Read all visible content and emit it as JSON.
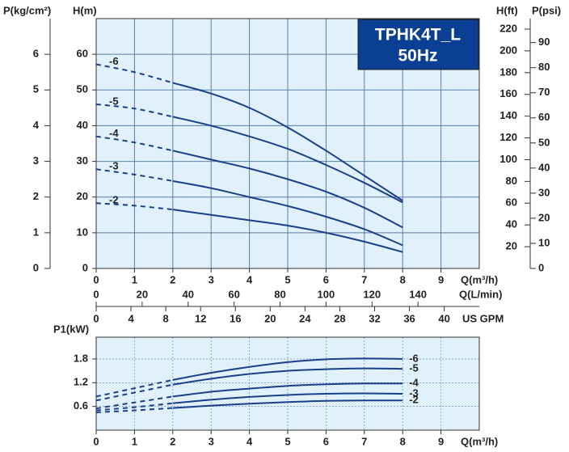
{
  "chart_data": [
    {
      "type": "line",
      "title": "TPHK4T_L",
      "subtitle": "50Hz",
      "xlabel": "Q(m³/h)",
      "ylabel": "H(m)",
      "x": [
        0,
        1,
        2,
        3,
        4,
        5,
        6,
        7,
        8
      ],
      "xlim": [
        0,
        10
      ],
      "xticks": [
        0,
        1,
        2,
        3,
        4,
        5,
        6,
        7,
        8,
        9
      ],
      "ylim": [
        0,
        70
      ],
      "yticks": [
        0,
        10,
        20,
        30,
        40,
        50,
        60
      ],
      "grid": true,
      "dashed_x_max": 2,
      "series_label_position": "start",
      "series": [
        {
          "name": "-6",
          "color": "#1b3f8b",
          "values": [
            57.2,
            55,
            52,
            49,
            45,
            39.5,
            33,
            26,
            19
          ]
        },
        {
          "name": "-5",
          "color": "#1b3f8b",
          "values": [
            46,
            44.8,
            42.5,
            40,
            37,
            33.5,
            29,
            24,
            18.5
          ]
        },
        {
          "name": "-4",
          "color": "#1b3f8b",
          "values": [
            37,
            35.3,
            33,
            30.5,
            28,
            25,
            21.5,
            17,
            11.5
          ]
        },
        {
          "name": "-3",
          "color": "#1b3f8b",
          "values": [
            27.8,
            26.3,
            24.5,
            22.5,
            20,
            17.5,
            14.5,
            11,
            6.5
          ]
        },
        {
          "name": "-2",
          "color": "#1b3f8b",
          "values": [
            18.3,
            17.6,
            16.5,
            15,
            13.5,
            12,
            10,
            7.5,
            4.6
          ]
        }
      ],
      "secondary_axes": [
        {
          "label": "P(kg/cm²)",
          "lim": [
            0,
            7
          ],
          "ticks": [
            0,
            1,
            2,
            3,
            4,
            5,
            6
          ]
        },
        {
          "label": "H(ft)",
          "lim": [
            0,
            229.66
          ],
          "ticks": [
            20,
            40,
            60,
            80,
            100,
            120,
            140,
            160,
            180,
            200,
            220
          ]
        },
        {
          "label": "P(psi)",
          "lim": [
            0,
            99.56
          ],
          "ticks": [
            0,
            10,
            20,
            30,
            40,
            50,
            60,
            70,
            80,
            90
          ]
        },
        {
          "label": "Q(L/min)",
          "lim": [
            0,
            166.67
          ],
          "ticks": [
            0,
            20,
            40,
            60,
            80,
            100,
            120,
            140
          ]
        },
        {
          "label": "US GPM",
          "lim": [
            0,
            44.03
          ],
          "ticks": [
            0,
            4,
            8,
            12,
            16,
            20,
            24,
            28,
            32,
            36,
            40
          ]
        }
      ]
    },
    {
      "type": "line",
      "xlabel": "Q(m³/h)",
      "ylabel": "P1(kW)",
      "x": [
        0,
        1,
        2,
        3,
        4,
        5,
        6,
        7,
        8
      ],
      "xlim": [
        0,
        10
      ],
      "xticks": [
        0,
        1,
        2,
        3,
        4,
        5,
        6,
        7,
        8,
        9
      ],
      "ylim": [
        0,
        2.35
      ],
      "yticks": [
        0.6,
        1.2,
        1.8
      ],
      "grid": true,
      "dashed_x_max": 2,
      "series_label_position": "end",
      "series": [
        {
          "name": "-6",
          "color": "#1b3f8b",
          "values": [
            0.85,
            1.06,
            1.27,
            1.45,
            1.6,
            1.72,
            1.79,
            1.81,
            1.8
          ]
        },
        {
          "name": "-5",
          "color": "#1b3f8b",
          "values": [
            0.75,
            0.95,
            1.15,
            1.3,
            1.42,
            1.5,
            1.54,
            1.56,
            1.55
          ]
        },
        {
          "name": "-4",
          "color": "#1b3f8b",
          "values": [
            0.55,
            0.7,
            0.85,
            0.97,
            1.05,
            1.12,
            1.16,
            1.18,
            1.18
          ]
        },
        {
          "name": "-3",
          "color": "#1b3f8b",
          "values": [
            0.5,
            0.58,
            0.68,
            0.77,
            0.84,
            0.89,
            0.92,
            0.93,
            0.92
          ]
        },
        {
          "name": "-2",
          "color": "#1b3f8b",
          "values": [
            0.45,
            0.5,
            0.56,
            0.62,
            0.67,
            0.71,
            0.74,
            0.75,
            0.75
          ]
        }
      ]
    }
  ]
}
